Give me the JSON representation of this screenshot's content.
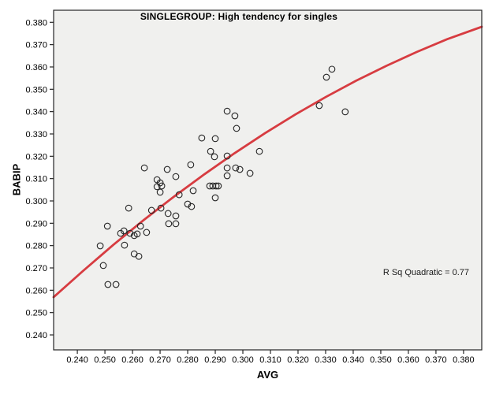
{
  "chart_data": {
    "type": "scatter",
    "title": "SINGLEGROUP: High tendency for singles",
    "xlabel": "AVG",
    "ylabel": "BABIP",
    "annotation": "R Sq Quadratic = 0.77",
    "grid": false,
    "legend": "none",
    "plot_background": "#f0f0ee",
    "frame_color": "#262626",
    "x_range": [
      0.2314,
      0.3866
    ],
    "y_range": [
      0.2333,
      0.3854
    ],
    "x_ticks": [
      "0.240",
      "0.250",
      "0.260",
      "0.270",
      "0.280",
      "0.290",
      "0.300",
      "0.310",
      "0.320",
      "0.330",
      "0.340",
      "0.350",
      "0.360",
      "0.370",
      "0.380"
    ],
    "y_ticks": [
      "0.240",
      "0.250",
      "0.260",
      "0.270",
      "0.280",
      "0.290",
      "0.300",
      "0.310",
      "0.320",
      "0.330",
      "0.340",
      "0.350",
      "0.360",
      "0.370",
      "0.380"
    ],
    "point_style": {
      "shape": "open-circle",
      "radius": 3.8,
      "stroke": "#262626"
    },
    "points": [
      [
        0.3323,
        0.359
      ],
      [
        0.3303,
        0.3554
      ],
      [
        0.3277,
        0.3427
      ],
      [
        0.3371,
        0.3399
      ],
      [
        0.2943,
        0.3402
      ],
      [
        0.2971,
        0.3381
      ],
      [
        0.2977,
        0.3325
      ],
      [
        0.2851,
        0.3282
      ],
      [
        0.29,
        0.3279
      ],
      [
        0.2883,
        0.3222
      ],
      [
        0.306,
        0.3222
      ],
      [
        0.2897,
        0.3198
      ],
      [
        0.2943,
        0.3201
      ],
      [
        0.2811,
        0.3162
      ],
      [
        0.2726,
        0.3141
      ],
      [
        0.2643,
        0.3148
      ],
      [
        0.2943,
        0.3148
      ],
      [
        0.2974,
        0.3148
      ],
      [
        0.2989,
        0.3141
      ],
      [
        0.3026,
        0.3124
      ],
      [
        0.2943,
        0.3113
      ],
      [
        0.2757,
        0.3109
      ],
      [
        0.2689,
        0.3095
      ],
      [
        0.27,
        0.3081
      ],
      [
        0.2689,
        0.3064
      ],
      [
        0.2706,
        0.3067
      ],
      [
        0.27,
        0.3039
      ],
      [
        0.2769,
        0.3028
      ],
      [
        0.282,
        0.3046
      ],
      [
        0.288,
        0.3067
      ],
      [
        0.2891,
        0.3067
      ],
      [
        0.2903,
        0.3067
      ],
      [
        0.2911,
        0.3067
      ],
      [
        0.29,
        0.3014
      ],
      [
        0.28,
        0.2986
      ],
      [
        0.2814,
        0.2975
      ],
      [
        0.2586,
        0.2968
      ],
      [
        0.2669,
        0.2958
      ],
      [
        0.2703,
        0.2968
      ],
      [
        0.2729,
        0.2944
      ],
      [
        0.2757,
        0.2933
      ],
      [
        0.2629,
        0.2887
      ],
      [
        0.2509,
        0.2887
      ],
      [
        0.2557,
        0.2855
      ],
      [
        0.2569,
        0.2866
      ],
      [
        0.2591,
        0.2855
      ],
      [
        0.2606,
        0.2845
      ],
      [
        0.2617,
        0.2852
      ],
      [
        0.2651,
        0.2859
      ],
      [
        0.2731,
        0.2898
      ],
      [
        0.2757,
        0.2898
      ],
      [
        0.2571,
        0.2802
      ],
      [
        0.2483,
        0.2799
      ],
      [
        0.2606,
        0.2763
      ],
      [
        0.2623,
        0.2752
      ],
      [
        0.2494,
        0.2711
      ],
      [
        0.2511,
        0.2626
      ],
      [
        0.254,
        0.2626
      ]
    ],
    "fit": {
      "kind": "quadratic",
      "r_squared": 0.77,
      "color": "#d73c41",
      "width": 2.8,
      "points": [
        [
          0.2314,
          0.2569
        ],
        [
          0.242,
          0.2686
        ],
        [
          0.253,
          0.2803
        ],
        [
          0.264,
          0.2914
        ],
        [
          0.275,
          0.3019
        ],
        [
          0.286,
          0.3119
        ],
        [
          0.297,
          0.3214
        ],
        [
          0.308,
          0.3303
        ],
        [
          0.319,
          0.3387
        ],
        [
          0.33,
          0.3465
        ],
        [
          0.341,
          0.3538
        ],
        [
          0.352,
          0.3605
        ],
        [
          0.363,
          0.3667
        ],
        [
          0.374,
          0.3724
        ],
        [
          0.3866,
          0.378
        ]
      ]
    }
  }
}
